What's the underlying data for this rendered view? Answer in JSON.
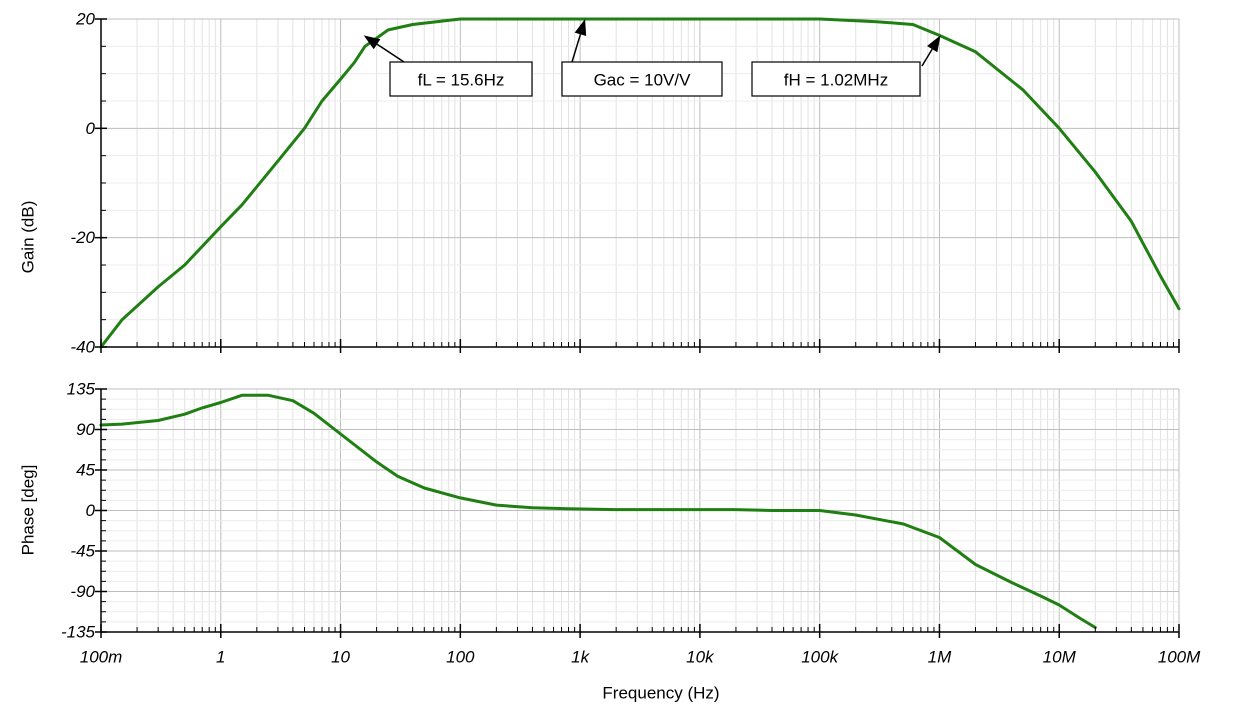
{
  "chart_data": [
    {
      "type": "line",
      "ylabel": "Gain (dB)",
      "x_scale": "log",
      "xlim": [
        0.1,
        100000000
      ],
      "ylim": [
        -40,
        20
      ],
      "yticks": [
        20,
        0,
        -20,
        -40
      ],
      "ytick_labels": [
        "20",
        "0",
        "-20",
        "-40"
      ],
      "grid": true,
      "series": [
        {
          "color": "#1f7f12",
          "points": [
            [
              0.1,
              -40
            ],
            [
              0.15,
              -35
            ],
            [
              0.3,
              -29
            ],
            [
              0.5,
              -25
            ],
            [
              1,
              -18
            ],
            [
              1.5,
              -14
            ],
            [
              3,
              -6
            ],
            [
              5,
              0
            ],
            [
              7,
              5
            ],
            [
              10,
              9
            ],
            [
              13,
              12
            ],
            [
              16,
              15
            ],
            [
              25,
              18
            ],
            [
              40,
              19
            ],
            [
              100,
              20
            ],
            [
              1000,
              20
            ],
            [
              100000,
              20
            ],
            [
              300000,
              19.5
            ],
            [
              600000,
              19
            ],
            [
              1000000,
              17
            ],
            [
              2000000,
              14
            ],
            [
              5000000,
              7
            ],
            [
              10000000,
              0
            ],
            [
              20000000,
              -8
            ],
            [
              40000000,
              -17
            ],
            [
              70000000,
              -27
            ],
            [
              100000000,
              -33
            ]
          ]
        }
      ],
      "annotations": [
        {
          "text": "fL = 15.6Hz",
          "target": [
            15.6,
            17
          ]
        },
        {
          "text": "Gac = 10V/V",
          "target": [
            1100,
            20
          ]
        },
        {
          "text": "fH = 1.02MHz",
          "target": [
            1020000,
            17
          ]
        }
      ]
    },
    {
      "type": "line",
      "xlabel": "Frequency (Hz)",
      "ylabel": "Phase [deg]",
      "x_scale": "log",
      "xlim": [
        0.1,
        100000000
      ],
      "ylim": [
        -135,
        135
      ],
      "xticks": [
        0.1,
        1,
        10,
        100,
        1000,
        10000,
        100000,
        1000000,
        10000000,
        100000000
      ],
      "xtick_labels": [
        "100m",
        "1",
        "10",
        "100",
        "1k",
        "10k",
        "100k",
        "1M",
        "10M",
        "100M"
      ],
      "yticks": [
        135,
        90,
        45,
        0,
        -45,
        -90,
        -135
      ],
      "ytick_labels": [
        "135",
        "90",
        "45",
        "0",
        "-45",
        "-90",
        "-135"
      ],
      "grid": true,
      "series": [
        {
          "color": "#1f7f12",
          "points": [
            [
              0.1,
              95
            ],
            [
              0.15,
              96
            ],
            [
              0.3,
              100
            ],
            [
              0.5,
              107
            ],
            [
              0.7,
              114
            ],
            [
              1,
              120
            ],
            [
              1.5,
              128
            ],
            [
              2.5,
              128
            ],
            [
              4,
              122
            ],
            [
              6,
              108
            ],
            [
              10,
              85
            ],
            [
              20,
              54
            ],
            [
              30,
              38
            ],
            [
              50,
              25
            ],
            [
              100,
              14
            ],
            [
              200,
              6
            ],
            [
              400,
              3
            ],
            [
              800,
              2
            ],
            [
              2000,
              1
            ],
            [
              20000,
              1
            ],
            [
              40000,
              0
            ],
            [
              100000,
              0
            ],
            [
              200000,
              -5
            ],
            [
              500000,
              -15
            ],
            [
              1000000,
              -30
            ],
            [
              2000000,
              -60
            ],
            [
              4000000,
              -80
            ],
            [
              7000000,
              -95
            ],
            [
              10000000,
              -105
            ],
            [
              15000000,
              -120
            ],
            [
              20000000,
              -130
            ]
          ]
        }
      ]
    }
  ]
}
